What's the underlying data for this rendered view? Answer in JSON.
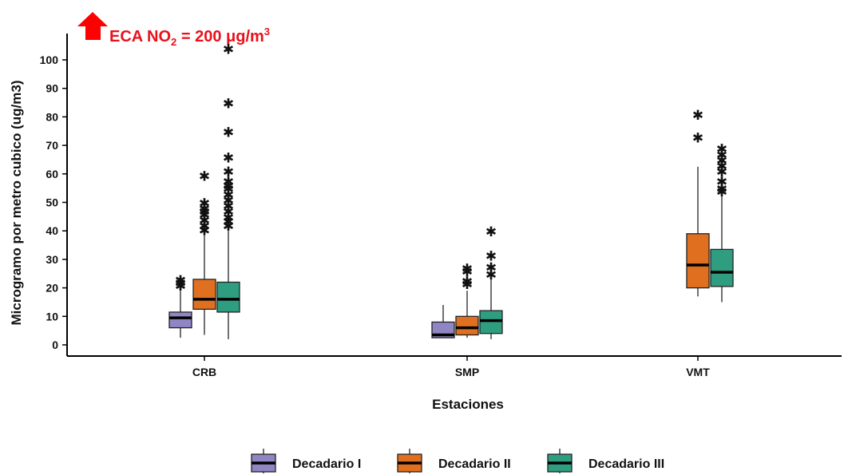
{
  "chart_data": {
    "type": "boxplot",
    "xlabel": "Estaciones",
    "ylabel": "Microgramo por metro cubico (ug/m3)",
    "ylim": [
      -2,
      106
    ],
    "yticks": [
      0,
      10,
      20,
      30,
      40,
      50,
      60,
      70,
      80,
      90,
      100
    ],
    "categories": [
      "CRB",
      "SMP",
      "VMT"
    ],
    "annotation": {
      "prefix": "ECA NO",
      "subscript": "2",
      "middle": " = 200 μg/m",
      "superscript": "3",
      "arrow_color": "#ff0000",
      "text_color": "#e8121b"
    },
    "legend_placement": "bottom",
    "series": [
      {
        "name": "Decadario I",
        "color": "#8f86c3",
        "boxes": [
          {
            "category": "CRB",
            "min": 2.5,
            "q1": 6,
            "median": 9.5,
            "q3": 11.5,
            "max": 19,
            "outliers": [
              21,
              22,
              23
            ]
          },
          {
            "category": "SMP",
            "min": 2.5,
            "q1": 2.5,
            "median": 3.5,
            "q3": 8,
            "max": 14,
            "outliers": []
          }
        ]
      },
      {
        "name": "Decadario II",
        "color": "#e0701f",
        "boxes": [
          {
            "category": "CRB",
            "min": 3.5,
            "q1": 12.5,
            "median": 16,
            "q3": 23,
            "max": 39,
            "outliers": [
              40.5,
              42,
              44,
              46,
              47,
              48,
              50,
              59.5
            ]
          },
          {
            "category": "SMP",
            "min": 2.5,
            "q1": 3.5,
            "median": 6,
            "q3": 10,
            "max": 19,
            "outliers": [
              21.5,
              22.5,
              26,
              27
            ]
          },
          {
            "category": "VMT",
            "min": 17,
            "q1": 20,
            "median": 28,
            "q3": 39,
            "max": 62.5,
            "outliers": [
              73,
              81
            ]
          }
        ]
      },
      {
        "name": "Decadario III",
        "color": "#2f9e80",
        "boxes": [
          {
            "category": "CRB",
            "min": 2,
            "q1": 11.5,
            "median": 16,
            "q3": 22,
            "max": 40,
            "outliers": [
              42,
              43.5,
              45,
              47,
              49,
              51,
              53,
              55,
              56,
              57.5,
              61,
              66,
              75,
              85,
              104
            ]
          },
          {
            "category": "SMP",
            "min": 2,
            "q1": 4,
            "median": 8.5,
            "q3": 12,
            "max": 23,
            "outliers": [
              25,
              27.5,
              31.5,
              40
            ]
          },
          {
            "category": "VMT",
            "min": 15,
            "q1": 20.5,
            "median": 25.5,
            "q3": 33.5,
            "max": 53,
            "outliers": [
              54,
              55,
              57.5,
              61,
              63,
              65,
              67,
              69
            ]
          }
        ]
      }
    ]
  }
}
